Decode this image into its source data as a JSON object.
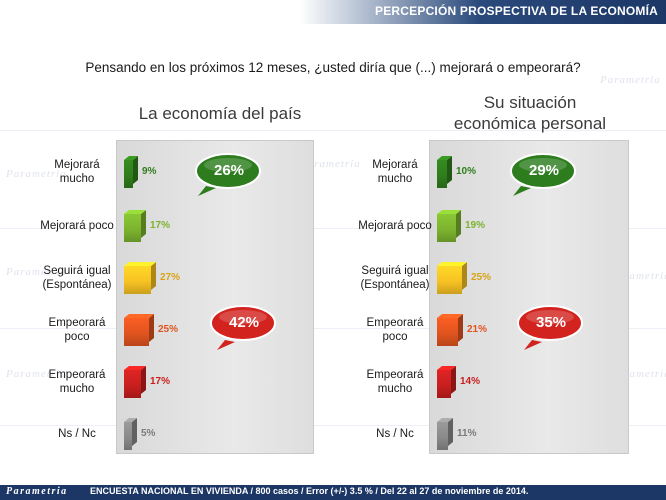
{
  "header": {
    "title": "PERCEPCIÓN PROSPECTIVA DE LA ECONOMÍA"
  },
  "question": "Pensando en los próximos 12 meses, ¿usted diría que (...) mejorará o empeorará?",
  "footer": {
    "logo": "Parametria",
    "note": "ENCUESTA NACIONAL EN VIVIENDA / 800 casos / Error (+/-) 3.5 % / Del 22 al 27 de noviembre de 2014."
  },
  "watermark_text": "Parametria",
  "colors": {
    "mejorara_mucho": "#2f7d1c",
    "mejorara_poco": "#7cb32e",
    "seguira_igual": "#f7c223",
    "empeorara_poco": "#e0541f",
    "empeorara_mucho": "#c81f1f",
    "ns_nc": "#8a8a8a",
    "bubble_green": "#2d7d1e",
    "bubble_red": "#d2231f",
    "header_blue": "#1c3766"
  },
  "chart_data": [
    {
      "type": "bar",
      "orientation": "horizontal",
      "title": "La economía del país",
      "categories": [
        "Mejorará mucho",
        "Mejorará poco",
        "Seguirá igual (Espontánea)",
        "Empeorará poco",
        "Empeorará mucho",
        "Ns / Nc"
      ],
      "category_lines": [
        [
          "Mejorará",
          "mucho"
        ],
        [
          "Mejorará poco"
        ],
        [
          "Seguirá igual",
          "(Espontánea)"
        ],
        [
          "Empeorará",
          "poco"
        ],
        [
          "Empeorará",
          "mucho"
        ],
        [
          "Ns / Nc"
        ]
      ],
      "values": [
        9,
        17,
        27,
        25,
        17,
        5
      ],
      "value_labels": [
        "9%",
        "17%",
        "27%",
        "25%",
        "17%",
        "5%"
      ],
      "annotations": [
        {
          "text": "26%",
          "color": "green",
          "spans": [
            "Mejorará mucho",
            "Mejorará poco"
          ]
        },
        {
          "text": "42%",
          "color": "red",
          "spans": [
            "Empeorará poco",
            "Empeorará mucho"
          ]
        }
      ]
    },
    {
      "type": "bar",
      "orientation": "horizontal",
      "title": "Su situación económica personal",
      "title_lines": [
        "Su situación",
        "económica personal"
      ],
      "categories": [
        "Mejorará mucho",
        "Mejorará poco",
        "Seguirá igual (Espontánea)",
        "Empeorará poco",
        "Empeorará mucho",
        "Ns / Nc"
      ],
      "category_lines": [
        [
          "Mejorará",
          "mucho"
        ],
        [
          "Mejorará poco"
        ],
        [
          "Seguirá igual",
          "(Espontánea)"
        ],
        [
          "Empeorará",
          "poco"
        ],
        [
          "Empeorará",
          "mucho"
        ],
        [
          "Ns / Nc"
        ]
      ],
      "values": [
        10,
        19,
        25,
        21,
        14,
        11
      ],
      "value_labels": [
        "10%",
        "19%",
        "25%",
        "21%",
        "14%",
        "11%"
      ],
      "annotations": [
        {
          "text": "29%",
          "color": "green",
          "spans": [
            "Mejorará mucho",
            "Mejorará poco"
          ]
        },
        {
          "text": "35%",
          "color": "red",
          "spans": [
            "Empeorará poco",
            "Empeorará mucho"
          ]
        }
      ]
    }
  ]
}
